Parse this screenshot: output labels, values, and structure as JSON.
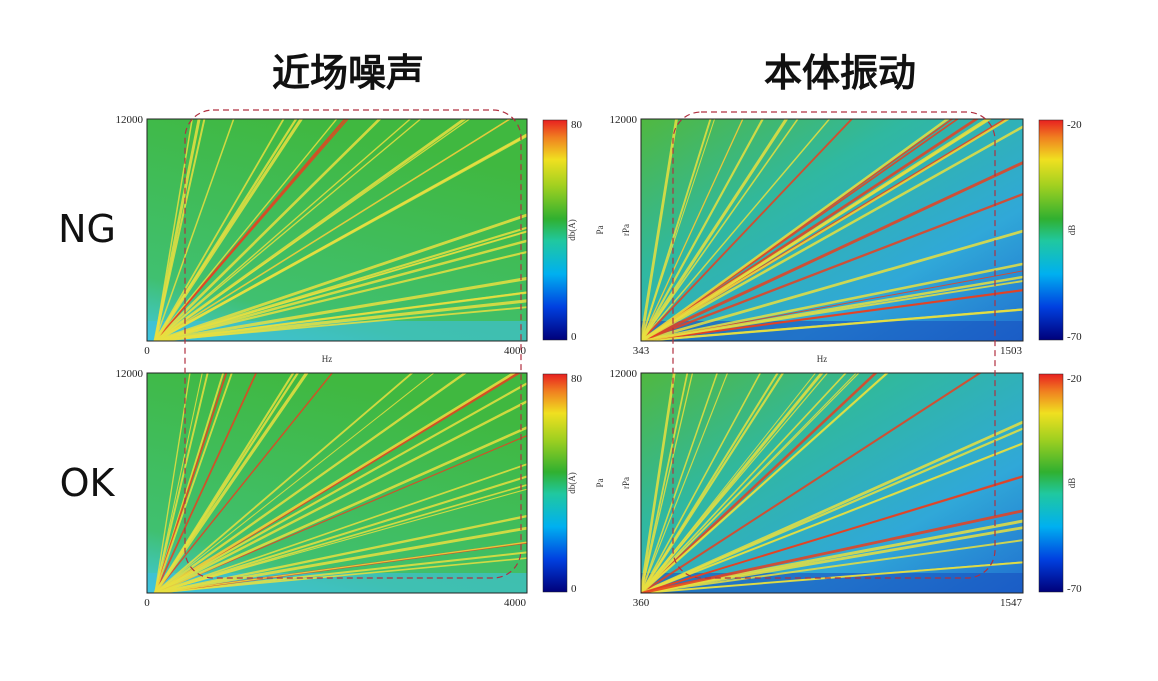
{
  "columns": [
    {
      "title": "近场噪声"
    },
    {
      "title": "本体振动"
    }
  ],
  "rows": [
    {
      "label": "NG"
    },
    {
      "label": "OK"
    }
  ],
  "panels": [
    {
      "row": 0,
      "col": 0,
      "y_max": 12000,
      "x_min": 0,
      "x_max": 4000,
      "x_unit": "Hz",
      "cbar_max": 80,
      "cbar_min": 0,
      "cbar_unit": "db(A)",
      "y_unit": "Pa"
    },
    {
      "row": 0,
      "col": 1,
      "y_max": 12000,
      "x_min": 343,
      "x_max": 1503,
      "x_unit": "Hz",
      "cbar_max": -20,
      "cbar_min": -70,
      "cbar_unit": "dB",
      "y_unit": "rPa"
    },
    {
      "row": 1,
      "col": 0,
      "y_max": 12000,
      "x_min": 0,
      "x_max": 4000,
      "cbar_max": 80,
      "cbar_min": 0,
      "cbar_unit": "db(A)",
      "y_unit": "Pa"
    },
    {
      "row": 1,
      "col": 1,
      "y_max": 12000,
      "x_min": 360,
      "x_max": 1547,
      "cbar_max": -20,
      "cbar_min": -70,
      "cbar_unit": "dB",
      "y_unit": "rPa"
    }
  ]
}
